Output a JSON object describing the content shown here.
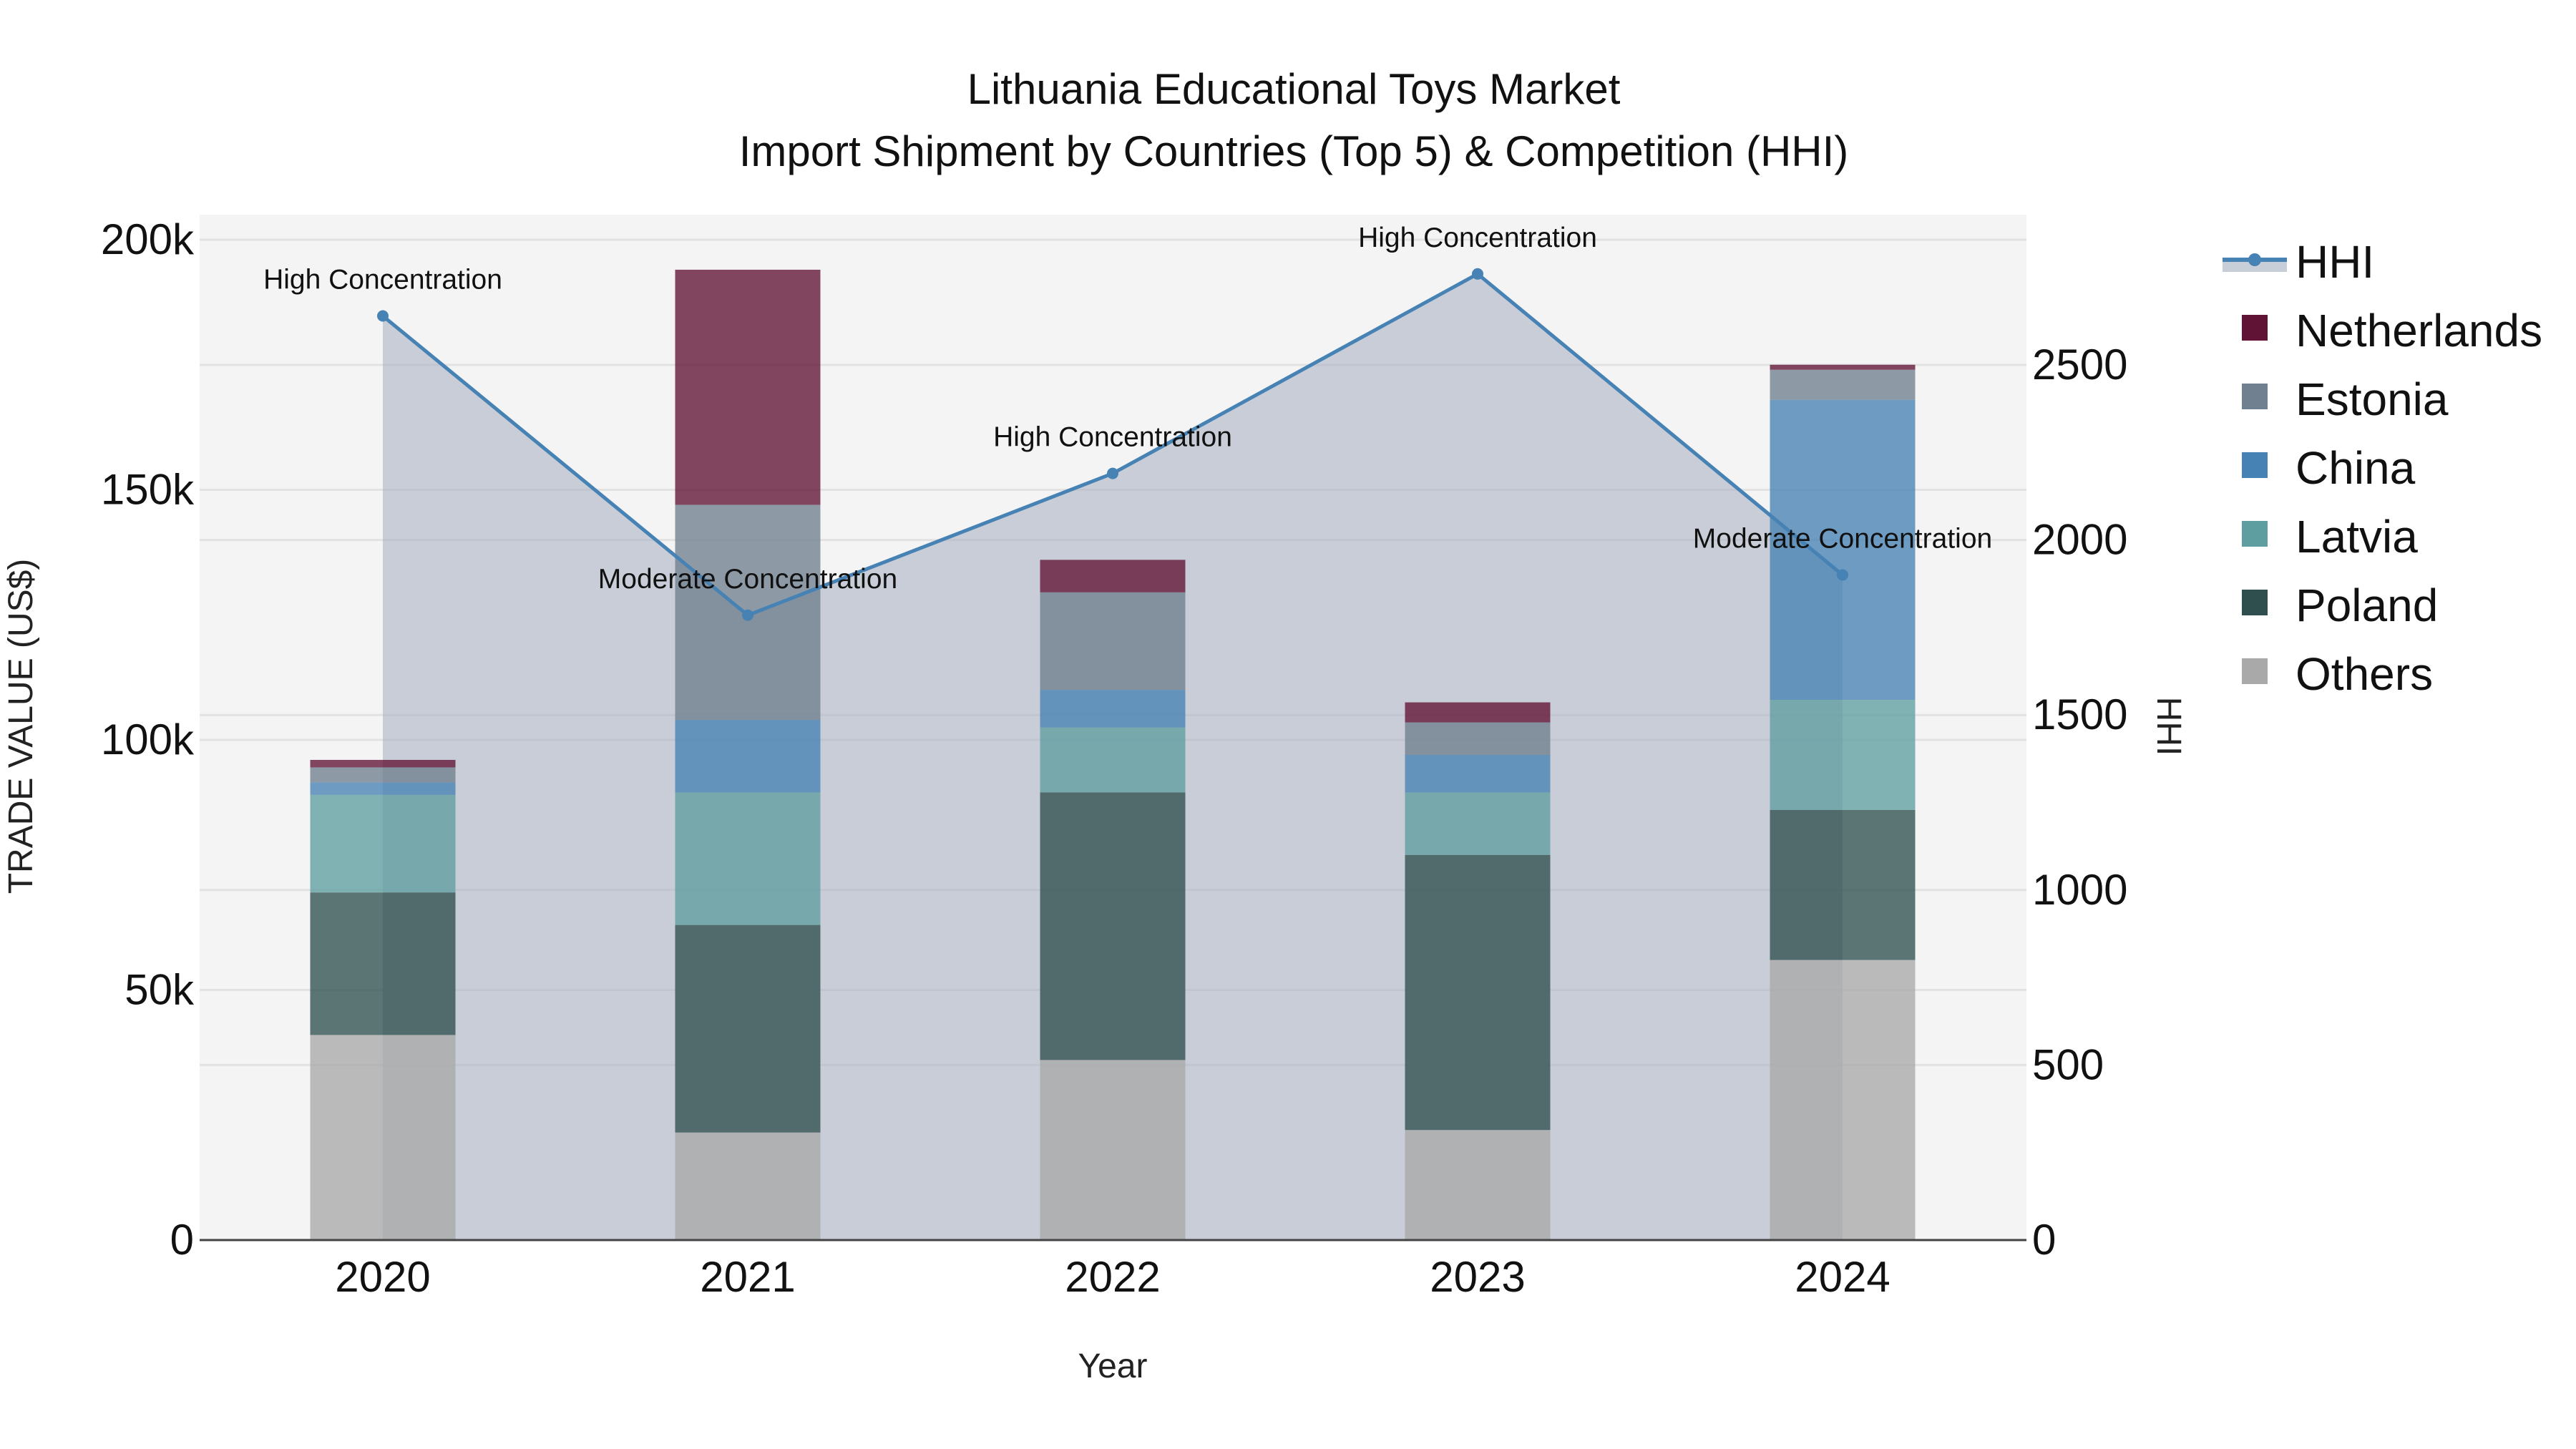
{
  "chart_data": {
    "type": "bar",
    "stacked": true,
    "title": "Lithuania Educational Toys Market",
    "subtitle": "Import Shipment by Countries (Top 5) & Competition (HHI)",
    "xlabel": "Year",
    "ylabel": "TRADE VALUE (US$)",
    "y2label": "HHI",
    "categories": [
      "2020",
      "2021",
      "2022",
      "2023",
      "2024"
    ],
    "ylim": [
      0,
      200000
    ],
    "y2lim": [
      0,
      2900
    ],
    "yticks": [
      "0",
      "50k",
      "100k",
      "150k",
      "200k"
    ],
    "y2ticks": [
      "0",
      "500",
      "1000",
      "1500",
      "2000",
      "2500"
    ],
    "grid": true,
    "legend_position": "right",
    "series": [
      {
        "name": "Others",
        "color": "#a9a9a9",
        "values": [
          41000,
          21500,
          36000,
          22000,
          56000
        ]
      },
      {
        "name": "Poland",
        "color": "#2f4f4f",
        "values": [
          28500,
          41500,
          53500,
          55000,
          30000
        ]
      },
      {
        "name": "Latvia",
        "color": "#5f9ea0",
        "values": [
          19500,
          26500,
          13000,
          12500,
          22000
        ]
      },
      {
        "name": "China",
        "color": "#4682b4",
        "values": [
          2500,
          14500,
          7500,
          7500,
          60000
        ]
      },
      {
        "name": "Estonia",
        "color": "#708090",
        "values": [
          3000,
          43000,
          19500,
          6500,
          6000
        ]
      },
      {
        "name": "Netherlands",
        "color": "#611335",
        "values": [
          1500,
          47000,
          6500,
          4000,
          1000
        ]
      }
    ],
    "hhi": {
      "name": "HHI",
      "type": "line+area",
      "color": "#4682b4",
      "fill_color": "#b0b8c8",
      "values": [
        2640,
        1785,
        2190,
        2760,
        1900
      ],
      "annotations": [
        "High Concentration",
        "Moderate Concentration",
        "High Concentration",
        "High Concentration",
        "Moderate Concentration"
      ]
    }
  },
  "legend": {
    "items": [
      {
        "label": "HHI",
        "kind": "line"
      },
      {
        "label": "Netherlands",
        "kind": "box"
      },
      {
        "label": "Estonia",
        "kind": "box"
      },
      {
        "label": "China",
        "kind": "box"
      },
      {
        "label": "Latvia",
        "kind": "box"
      },
      {
        "label": "Poland",
        "kind": "box"
      },
      {
        "label": "Others",
        "kind": "box"
      }
    ]
  }
}
